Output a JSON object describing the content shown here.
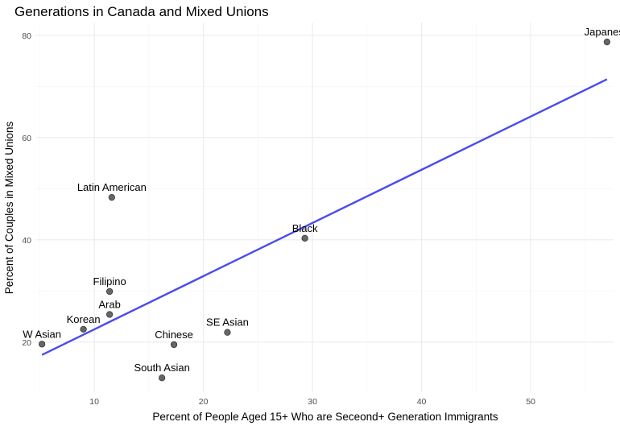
{
  "chart_data": {
    "type": "scatter",
    "title": "Generations in Canada and Mixed Unions",
    "xlabel": "Percent of People Aged 15+ Who are Seceond+ Generation Immigrants",
    "ylabel": "Percent of Couples in Mixed Unions",
    "xlim": [
      4.6,
      57.6
    ],
    "ylim": [
      10.2,
      82.5
    ],
    "x_ticks": [
      10,
      20,
      30,
      40,
      50
    ],
    "y_ticks": [
      20,
      40,
      60,
      80
    ],
    "grid": true,
    "points": [
      {
        "label": "Japanese",
        "x": 57.0,
        "y": 78.7
      },
      {
        "label": "Latin American",
        "x": 11.6,
        "y": 48.3
      },
      {
        "label": "Black",
        "x": 29.3,
        "y": 40.3
      },
      {
        "label": "Filipino",
        "x": 11.4,
        "y": 29.9
      },
      {
        "label": "Arab",
        "x": 11.4,
        "y": 25.4
      },
      {
        "label": "Korean",
        "x": 9.0,
        "y": 22.5
      },
      {
        "label": "W Asian",
        "x": 5.2,
        "y": 19.6
      },
      {
        "label": "SE Asian",
        "x": 22.2,
        "y": 21.9
      },
      {
        "label": "Chinese",
        "x": 17.3,
        "y": 19.5
      },
      {
        "label": "South Asian",
        "x": 16.2,
        "y": 13.0
      }
    ],
    "trend_line": {
      "x": [
        5.2,
        57.0
      ],
      "y": [
        17.5,
        71.4
      ],
      "color": "#4a4af0"
    },
    "point_color": "#555555"
  }
}
